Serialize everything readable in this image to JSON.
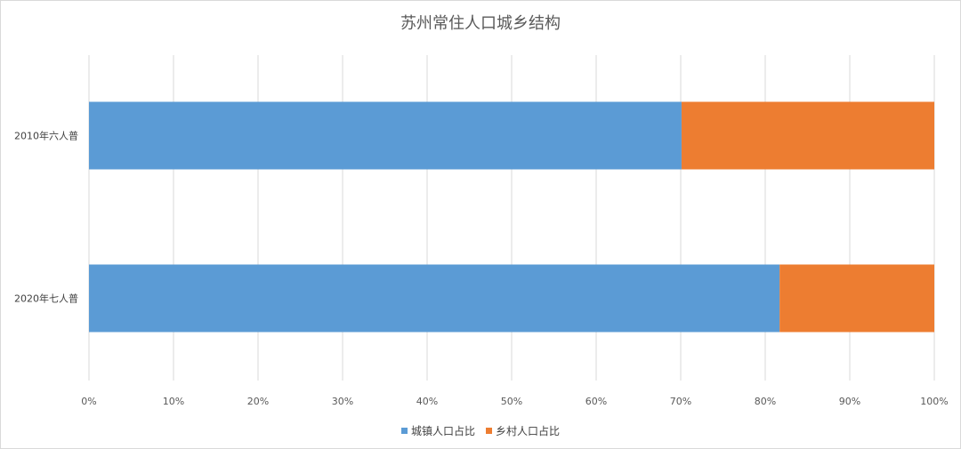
{
  "chart_data": {
    "type": "bar",
    "orientation": "horizontal",
    "stacked": "percent",
    "title": "苏州常住人口城乡结构",
    "categories": [
      "2010年六人普",
      "2020年七人普"
    ],
    "series": [
      {
        "name": "城镇人口占比",
        "color": "#5b9bd5",
        "values": [
          70.1,
          81.7
        ]
      },
      {
        "name": "乡村人口占比",
        "color": "#ed7d31",
        "values": [
          29.9,
          18.3
        ]
      }
    ],
    "x_ticks": [
      "0%",
      "10%",
      "20%",
      "30%",
      "40%",
      "50%",
      "60%",
      "70%",
      "80%",
      "90%",
      "100%"
    ],
    "xlim": [
      0,
      100
    ],
    "grid": true,
    "legend": "bottom"
  }
}
